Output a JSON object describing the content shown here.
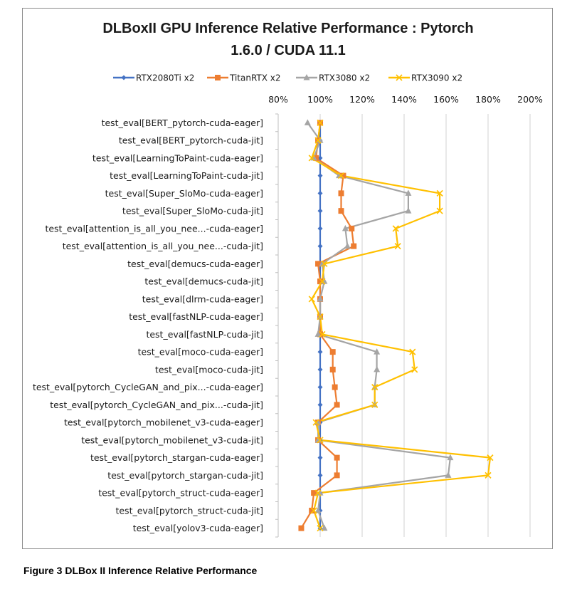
{
  "caption": "Figure 3 DLBox II Inference Relative Performance",
  "chart_data": {
    "type": "line",
    "orientation": "horizontal",
    "title": "DLBoxII GPU Inference Relative Performance : Pytorch",
    "subtitle": "1.6.0 / CUDA 11.1",
    "xlim": [
      0.8,
      2.0
    ],
    "xticks": [
      0.8,
      1.0,
      1.2,
      1.4,
      1.6,
      1.8,
      2.0
    ],
    "xtick_labels": [
      "80%",
      "100%",
      "120%",
      "140%",
      "160%",
      "180%",
      "200%"
    ],
    "grid": "vertical",
    "legend_position": "top",
    "categories": [
      "test_eval[BERT_pytorch-cuda-eager]",
      "test_eval[BERT_pytorch-cuda-jit]",
      "test_eval[LearningToPaint-cuda-eager]",
      "test_eval[LearningToPaint-cuda-jit]",
      "test_eval[Super_SloMo-cuda-eager]",
      "test_eval[Super_SloMo-cuda-jit]",
      "test_eval[attention_is_all_you_nee...-cuda-eager]",
      "test_eval[attention_is_all_you_nee...-cuda-jit]",
      "test_eval[demucs-cuda-eager]",
      "test_eval[demucs-cuda-jit]",
      "test_eval[dlrm-cuda-eager]",
      "test_eval[fastNLP-cuda-eager]",
      "test_eval[fastNLP-cuda-jit]",
      "test_eval[moco-cuda-eager]",
      "test_eval[moco-cuda-jit]",
      "test_eval[pytorch_CycleGAN_and_pix...-cuda-eager]",
      "test_eval[pytorch_CycleGAN_and_pix...-cuda-jit]",
      "test_eval[pytorch_mobilenet_v3-cuda-eager]",
      "test_eval[pytorch_mobilenet_v3-cuda-jit]",
      "test_eval[pytorch_stargan-cuda-eager]",
      "test_eval[pytorch_stargan-cuda-jit]",
      "test_eval[pytorch_struct-cuda-eager]",
      "test_eval[pytorch_struct-cuda-jit]",
      "test_eval[yolov3-cuda-eager]"
    ],
    "series": [
      {
        "name": "RTX2080Ti x2",
        "color": "#4472c4",
        "marker": "diamond",
        "values": [
          1.0,
          1.0,
          1.0,
          1.0,
          1.0,
          1.0,
          1.0,
          1.0,
          1.0,
          1.0,
          1.0,
          1.0,
          1.0,
          1.0,
          1.0,
          1.0,
          1.0,
          1.0,
          1.0,
          1.0,
          1.0,
          1.0,
          1.0,
          1.0
        ]
      },
      {
        "name": "TitanRTX x2",
        "color": "#ed7d31",
        "marker": "square",
        "values": [
          1.0,
          0.99,
          0.98,
          1.11,
          1.1,
          1.1,
          1.15,
          1.16,
          0.99,
          1.0,
          1.0,
          1.0,
          1.0,
          1.06,
          1.06,
          1.07,
          1.08,
          0.99,
          0.99,
          1.08,
          1.08,
          0.97,
          0.96,
          0.91
        ]
      },
      {
        "name": "RTX3080 x2",
        "color": "#a5a5a5",
        "marker": "triangle",
        "values": [
          0.94,
          1.0,
          0.97,
          1.09,
          1.42,
          1.42,
          1.12,
          1.13,
          1.01,
          1.02,
          1.0,
          1.0,
          0.99,
          1.27,
          1.27,
          1.26,
          1.26,
          0.99,
          0.99,
          1.62,
          1.61,
          1.0,
          0.99,
          1.02
        ]
      },
      {
        "name": "RTX3090 x2",
        "color": "#ffc000",
        "marker": "x",
        "values": [
          1.0,
          0.99,
          0.96,
          1.1,
          1.57,
          1.57,
          1.36,
          1.37,
          1.02,
          1.01,
          0.96,
          1.0,
          1.01,
          1.44,
          1.45,
          1.26,
          1.26,
          0.98,
          1.0,
          1.81,
          1.8,
          0.99,
          0.97,
          1.0
        ]
      }
    ]
  }
}
